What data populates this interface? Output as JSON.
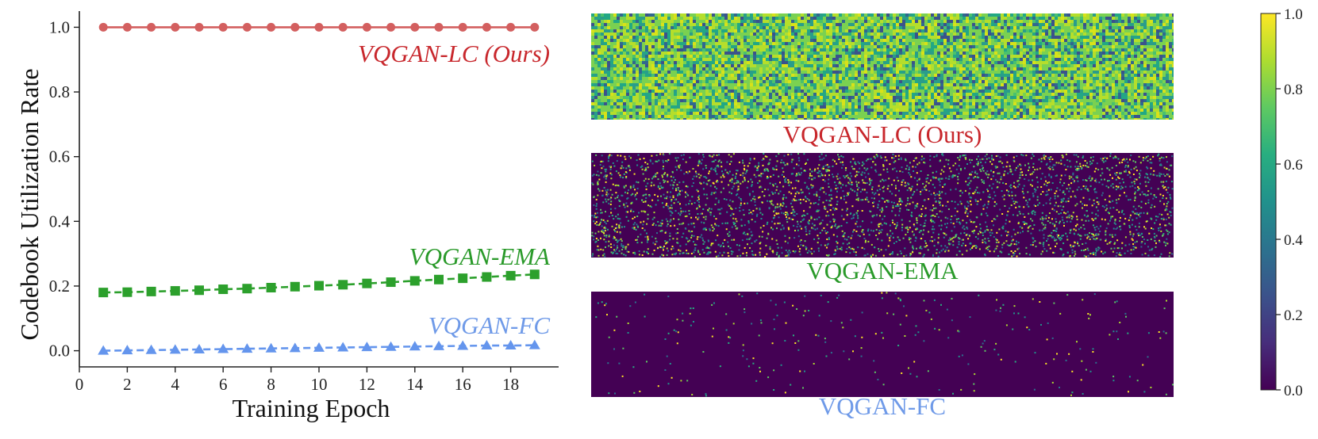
{
  "chart_data": [
    {
      "type": "line",
      "title": "",
      "xlabel": "Training Epoch",
      "ylabel": "Codebook Utilization Rate",
      "xlim": [
        0,
        20
      ],
      "ylim": [
        -0.05,
        1.05
      ],
      "xticks": [
        "0",
        "2",
        "4",
        "6",
        "8",
        "10",
        "12",
        "14",
        "16",
        "18"
      ],
      "yticks": [
        "0.0",
        "0.2",
        "0.4",
        "0.6",
        "0.8",
        "1.0"
      ],
      "x": [
        1,
        2,
        3,
        4,
        5,
        6,
        7,
        8,
        9,
        10,
        11,
        12,
        13,
        14,
        15,
        16,
        17,
        18,
        19
      ],
      "series": [
        {
          "name": "VQGAN-LC (Ours)",
          "label": "VQGAN-LC (Ours)",
          "color": "#d35f5f",
          "label_color": "#c8272c",
          "marker": "circle",
          "values": [
            1.0,
            1.0,
            1.0,
            1.0,
            1.0,
            1.0,
            1.0,
            1.0,
            1.0,
            1.0,
            1.0,
            1.0,
            1.0,
            1.0,
            1.0,
            1.0,
            1.0,
            1.0,
            1.0
          ]
        },
        {
          "name": "VQGAN-EMA",
          "label": "VQGAN-EMA",
          "color": "#2ca02c",
          "label_color": "#2a9a2a",
          "marker": "square",
          "values": [
            0.18,
            0.181,
            0.183,
            0.185,
            0.187,
            0.19,
            0.192,
            0.195,
            0.198,
            0.201,
            0.204,
            0.208,
            0.212,
            0.216,
            0.22,
            0.224,
            0.228,
            0.232,
            0.236
          ]
        },
        {
          "name": "VQGAN-FC",
          "label": "VQGAN-FC",
          "color": "#6495ed",
          "label_color": "#6f9ae8",
          "marker": "triangle",
          "values": [
            0.0,
            0.001,
            0.002,
            0.003,
            0.004,
            0.005,
            0.006,
            0.007,
            0.008,
            0.009,
            0.01,
            0.011,
            0.012,
            0.013,
            0.014,
            0.015,
            0.016,
            0.016,
            0.017
          ]
        }
      ]
    },
    {
      "type": "heatmap",
      "panels": [
        {
          "name": "VQGAN-LC (Ours)",
          "label": "VQGAN-LC (Ours)",
          "label_color": "#c8272c",
          "active_fraction": 1.0
        },
        {
          "name": "VQGAN-EMA",
          "label": "VQGAN-EMA",
          "label_color": "#2a9a2a",
          "active_fraction": 0.22
        },
        {
          "name": "VQGAN-FC",
          "label": "VQGAN-FC",
          "label_color": "#6f9ae8",
          "active_fraction": 0.017
        }
      ],
      "colorbar": {
        "colormap": "viridis",
        "range": [
          0.0,
          1.0
        ],
        "ticks": [
          "0.0",
          "0.2",
          "0.4",
          "0.6",
          "0.8",
          "1.0"
        ]
      }
    }
  ]
}
